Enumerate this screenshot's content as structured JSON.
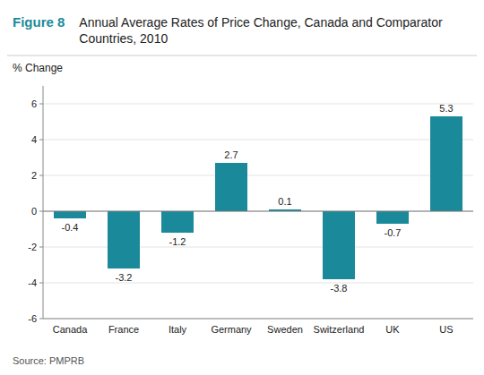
{
  "chart_data": {
    "type": "bar",
    "title": "Annual Average Rates of Price Change, Canada and Comparator Countries, 2010",
    "annotations": [
      "Figure 8",
      "Source: PMPRB"
    ],
    "y_label": "% Change",
    "categories": [
      "Canada",
      "France",
      "Italy",
      "Germany",
      "Sweden",
      "Switzerland",
      "UK",
      "US"
    ],
    "values": [
      -0.4,
      -3.2,
      -1.2,
      2.7,
      0.1,
      -3.8,
      -0.7,
      5.3
    ],
    "color": "#1a8a9a",
    "ylim": [
      -6,
      7
    ],
    "yticks": [
      -6,
      -4,
      -2,
      0,
      2,
      4,
      6
    ],
    "grid": true,
    "data_labels": true
  }
}
